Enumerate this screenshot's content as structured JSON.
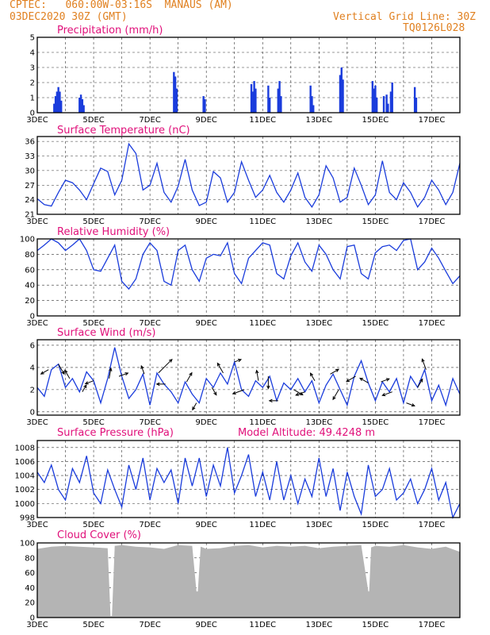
{
  "header": {
    "station_line": "CPTEC:   060:00W-03:16S  MANAUS (AM)",
    "date_line": "03DEC2020 30Z (GMT)",
    "grid_note": "Vertical Grid Line: 30Z",
    "model_code": "TQ0126L028"
  },
  "colors": {
    "header": "#e08020",
    "titles": "#e0107a",
    "series": "#1a3cdc",
    "cloud": "#b4b4b4"
  },
  "x_axis": {
    "categories": [
      "3DEC",
      "5DEC",
      "7DEC",
      "9DEC",
      "11DEC",
      "13DEC",
      "15DEC",
      "17DEC"
    ],
    "start_day": 3,
    "end_day": 18
  },
  "chart_data": [
    {
      "id": "precip",
      "type": "bar",
      "title": "Precipitation (mm/h)",
      "yticks": [
        0,
        1,
        2,
        3,
        4,
        5
      ],
      "ylim": [
        0,
        5
      ],
      "x": [
        3.6,
        3.65,
        3.7,
        3.75,
        3.8,
        3.85,
        4.5,
        4.55,
        4.6,
        4.65,
        7.85,
        7.9,
        7.95,
        8.9,
        8.95,
        10.6,
        10.65,
        10.7,
        10.75,
        11.2,
        11.25,
        11.55,
        11.6,
        11.65,
        12.7,
        12.75,
        12.8,
        13.75,
        13.8,
        13.85,
        14.9,
        14.95,
        15.0,
        15.05,
        15.3,
        15.4,
        15.45,
        15.55,
        15.6,
        16.4,
        16.45
      ],
      "values": [
        0.6,
        1.1,
        1.4,
        1.7,
        1.4,
        0.8,
        1.0,
        1.2,
        0.9,
        0.5,
        2.7,
        2.4,
        1.6,
        1.1,
        0.9,
        1.9,
        1.4,
        2.1,
        1.6,
        1.8,
        1.0,
        1.6,
        2.1,
        1.1,
        1.8,
        1.1,
        0.5,
        2.5,
        3.0,
        2.2,
        2.1,
        1.6,
        1.8,
        1.0,
        1.1,
        1.2,
        0.6,
        1.4,
        2.0,
        1.7,
        1.0
      ]
    },
    {
      "id": "temp",
      "type": "line",
      "title": "Surface Temperature (nC)",
      "yticks": [
        21,
        24,
        27,
        30,
        33,
        36
      ],
      "ylim": [
        21,
        37
      ],
      "x": [
        3.0,
        3.25,
        3.5,
        3.75,
        4.0,
        4.25,
        4.5,
        4.75,
        5.0,
        5.25,
        5.5,
        5.75,
        6.0,
        6.25,
        6.5,
        6.75,
        7.0,
        7.25,
        7.5,
        7.75,
        8.0,
        8.25,
        8.5,
        8.75,
        9.0,
        9.25,
        9.5,
        9.75,
        10.0,
        10.25,
        10.5,
        10.75,
        11.0,
        11.25,
        11.5,
        11.75,
        12.0,
        12.25,
        12.5,
        12.75,
        13.0,
        13.25,
        13.5,
        13.75,
        14.0,
        14.25,
        14.5,
        14.75,
        15.0,
        15.25,
        15.5,
        15.75,
        16.0,
        16.25,
        16.5,
        16.75,
        17.0,
        17.25,
        17.5,
        17.75,
        18.0
      ],
      "values": [
        24.2,
        23.0,
        22.7,
        25.5,
        28.0,
        27.5,
        26.0,
        24.0,
        27.3,
        30.5,
        29.8,
        25.0,
        28.0,
        35.5,
        33.5,
        26.0,
        27.0,
        31.5,
        25.5,
        23.5,
        26.8,
        32.3,
        26.0,
        22.8,
        23.5,
        29.8,
        28.5,
        23.5,
        25.5,
        31.8,
        28.0,
        24.5,
        26.0,
        29.0,
        25.5,
        23.5,
        26.0,
        29.5,
        24.5,
        22.5,
        25.0,
        31.0,
        28.5,
        23.5,
        24.5,
        30.5,
        27.0,
        23.0,
        25.0,
        32.0,
        25.5,
        24.0,
        27.5,
        25.5,
        22.5,
        24.5,
        28.0,
        26.0,
        23.0,
        25.5,
        31.5
      ]
    },
    {
      "id": "rh",
      "type": "line",
      "title": "Relative Humidity (%)",
      "yticks": [
        0,
        20,
        40,
        60,
        80,
        100
      ],
      "ylim": [
        0,
        100
      ],
      "x": [
        3.0,
        3.25,
        3.5,
        3.75,
        4.0,
        4.25,
        4.5,
        4.75,
        5.0,
        5.25,
        5.5,
        5.75,
        6.0,
        6.25,
        6.5,
        6.75,
        7.0,
        7.25,
        7.5,
        7.75,
        8.0,
        8.25,
        8.5,
        8.75,
        9.0,
        9.25,
        9.5,
        9.75,
        10.0,
        10.25,
        10.5,
        10.75,
        11.0,
        11.25,
        11.5,
        11.75,
        12.0,
        12.25,
        12.5,
        12.75,
        13.0,
        13.25,
        13.5,
        13.75,
        14.0,
        14.25,
        14.5,
        14.75,
        15.0,
        15.25,
        15.5,
        15.75,
        16.0,
        16.25,
        16.5,
        16.75,
        17.0,
        17.25,
        17.5,
        17.75,
        18.0
      ],
      "values": [
        85,
        92,
        100,
        95,
        85,
        92,
        100,
        85,
        60,
        58,
        75,
        92,
        45,
        35,
        48,
        80,
        95,
        85,
        45,
        40,
        85,
        92,
        60,
        45,
        75,
        80,
        78,
        95,
        55,
        42,
        75,
        85,
        95,
        92,
        55,
        48,
        78,
        95,
        70,
        58,
        92,
        80,
        60,
        48,
        90,
        92,
        55,
        48,
        82,
        90,
        92,
        85,
        98,
        100,
        60,
        70,
        88,
        75,
        58,
        42,
        52
      ]
    },
    {
      "id": "wind",
      "type": "line",
      "title": "Surface Wind (m/s)",
      "yticks": [
        0,
        2,
        4,
        6
      ],
      "ylim": [
        -0.3,
        6.5
      ],
      "x": [
        3.0,
        3.25,
        3.5,
        3.75,
        4.0,
        4.25,
        4.5,
        4.75,
        5.0,
        5.25,
        5.5,
        5.75,
        6.0,
        6.25,
        6.5,
        6.75,
        7.0,
        7.25,
        7.5,
        7.75,
        8.0,
        8.25,
        8.5,
        8.75,
        9.0,
        9.25,
        9.5,
        9.75,
        10.0,
        10.25,
        10.5,
        10.75,
        11.0,
        11.25,
        11.5,
        11.75,
        12.0,
        12.25,
        12.5,
        12.75,
        13.0,
        13.25,
        13.5,
        13.75,
        14.0,
        14.25,
        14.5,
        14.75,
        15.0,
        15.25,
        15.5,
        15.75,
        16.0,
        16.25,
        16.5,
        16.75,
        17.0,
        17.25,
        17.5,
        17.75,
        18.0
      ],
      "values": [
        2.2,
        1.4,
        3.8,
        4.3,
        2.2,
        3.0,
        1.8,
        3.6,
        2.8,
        0.8,
        3.0,
        5.8,
        3.2,
        1.2,
        2.0,
        3.4,
        0.6,
        3.5,
        2.5,
        1.8,
        0.8,
        2.7,
        1.6,
        0.8,
        3.0,
        2.2,
        3.5,
        2.5,
        4.5,
        2.0,
        1.4,
        2.8,
        2.2,
        3.2,
        1.0,
        2.6,
        2.0,
        3.0,
        1.8,
        2.8,
        0.8,
        2.4,
        3.4,
        2.0,
        0.6,
        3.2,
        4.6,
        2.6,
        1.0,
        2.7,
        1.8,
        3.0,
        0.8,
        3.2,
        2.2,
        3.8,
        1.0,
        2.4,
        0.6,
        3.0,
        1.6
      ],
      "arrows": {
        "x": [
          3.4,
          3.75,
          4.15,
          4.6,
          5.0,
          5.55,
          5.9,
          6.8,
          7.3,
          7.55,
          8.3,
          8.65,
          9.2,
          9.6,
          10.0,
          10.35,
          10.85,
          11.2,
          11.55,
          12.1,
          12.5,
          12.85,
          13.4,
          13.7,
          14.3,
          14.75,
          15.2,
          15.6,
          16.1,
          16.5,
          16.8
        ],
        "speed": [
          1.0,
          1.3,
          1.1,
          0.9,
          1.0,
          1.2,
          1.1,
          1.0,
          2.2,
          1.0,
          1.2,
          0.9,
          1.0,
          1.3,
          0.8,
          1.4,
          1.2,
          1.4,
          1.0,
          1.2,
          1.1,
          1.0,
          1.1,
          1.3,
          1.2,
          1.1,
          1.0,
          1.2,
          1.0,
          1.1,
          1.3
        ],
        "angle": [
          210,
          300,
          120,
          60,
          200,
          80,
          20,
          110,
          45,
          180,
          60,
          240,
          300,
          120,
          20,
          200,
          100,
          270,
          180,
          330,
          200,
          120,
          30,
          240,
          210,
          150,
          20,
          200,
          340,
          60,
          110
        ]
      }
    },
    {
      "id": "pressure",
      "type": "line",
      "title": "Surface Pressure (hPa)",
      "note": "Model Altitude: 49.4248 m",
      "yticks": [
        998,
        1000,
        1002,
        1004,
        1006,
        1008
      ],
      "ylim": [
        998,
        1009
      ],
      "x": [
        3.0,
        3.25,
        3.5,
        3.75,
        4.0,
        4.25,
        4.5,
        4.75,
        5.0,
        5.25,
        5.5,
        5.75,
        6.0,
        6.25,
        6.5,
        6.75,
        7.0,
        7.25,
        7.5,
        7.75,
        8.0,
        8.25,
        8.5,
        8.75,
        9.0,
        9.25,
        9.5,
        9.75,
        10.0,
        10.25,
        10.5,
        10.75,
        11.0,
        11.25,
        11.5,
        11.75,
        12.0,
        12.25,
        12.5,
        12.75,
        13.0,
        13.25,
        13.5,
        13.75,
        14.0,
        14.25,
        14.5,
        14.75,
        15.0,
        15.25,
        15.5,
        15.75,
        16.0,
        16.25,
        16.5,
        16.75,
        17.0,
        17.25,
        17.5,
        17.75,
        18.0
      ],
      "values": [
        1004.5,
        1003.0,
        1005.5,
        1002.0,
        1000.5,
        1005.0,
        1003.0,
        1006.8,
        1001.5,
        1000.0,
        1004.8,
        1002.0,
        999.5,
        1005.5,
        1002.0,
        1006.5,
        1000.5,
        1005.0,
        1003.0,
        1004.8,
        1000.0,
        1006.5,
        1002.5,
        1006.5,
        1001.0,
        1005.5,
        1002.5,
        1008.0,
        1001.5,
        1004.0,
        1007.0,
        1001.0,
        1004.5,
        1000.5,
        1006.0,
        1000.5,
        1004.0,
        1000.0,
        1003.5,
        1001.0,
        1006.5,
        1001.0,
        1005.0,
        999.0,
        1004.5,
        1001.0,
        998.5,
        1005.5,
        1001.0,
        1002.0,
        1005.0,
        1000.5,
        1001.5,
        1003.5,
        1000.0,
        1002.0,
        1005.0,
        1000.5,
        1003.0,
        998.0,
        1000.0
      ]
    },
    {
      "id": "cloud",
      "type": "area",
      "title": "Cloud Cover (%)",
      "yticks": [
        0,
        20,
        40,
        60,
        80,
        100
      ],
      "ylim": [
        0,
        100
      ],
      "x": [
        3.0,
        3.5,
        4.0,
        4.5,
        5.0,
        5.5,
        5.6,
        5.65,
        5.75,
        6.0,
        6.5,
        7.0,
        7.5,
        8.0,
        8.5,
        8.65,
        8.7,
        8.8,
        9.0,
        9.5,
        10.0,
        10.5,
        11.0,
        11.5,
        12.0,
        12.5,
        13.0,
        13.5,
        14.0,
        14.5,
        14.75,
        14.78,
        14.85,
        15.0,
        15.5,
        16.0,
        16.5,
        17.0,
        17.5,
        18.0
      ],
      "values": [
        92,
        95,
        96,
        95,
        94,
        93,
        2,
        2,
        96,
        97,
        95,
        94,
        92,
        97,
        96,
        35,
        35,
        95,
        92,
        93,
        96,
        97,
        94,
        96,
        95,
        96,
        93,
        95,
        96,
        97,
        35,
        35,
        94,
        96,
        95,
        97,
        94,
        92,
        95,
        88
      ]
    }
  ]
}
